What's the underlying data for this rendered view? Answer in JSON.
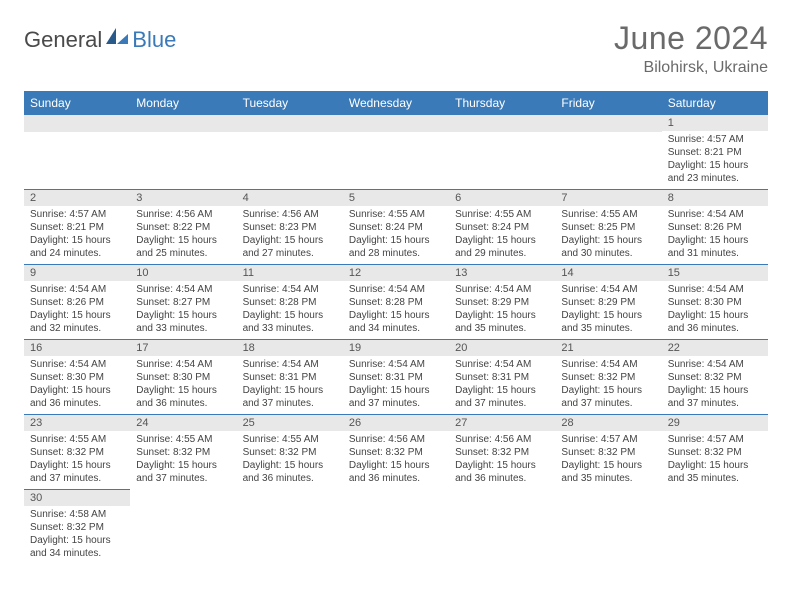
{
  "brand": {
    "part1": "General",
    "part2": "Blue"
  },
  "title": "June 2024",
  "location": "Bilohirsk, Ukraine",
  "colors": {
    "header_bg": "#3a7ab8",
    "header_text": "#ffffff",
    "daynum_bg": "#e8e8e8",
    "border": "#3a7ab8",
    "text": "#444444",
    "title_color": "#6a6a6a"
  },
  "day_headers": [
    "Sunday",
    "Monday",
    "Tuesday",
    "Wednesday",
    "Thursday",
    "Friday",
    "Saturday"
  ],
  "weeks": [
    [
      null,
      null,
      null,
      null,
      null,
      null,
      {
        "n": "1",
        "sr": "4:57 AM",
        "ss": "8:21 PM",
        "dl": "15 hours and 23 minutes."
      }
    ],
    [
      {
        "n": "2",
        "sr": "4:57 AM",
        "ss": "8:21 PM",
        "dl": "15 hours and 24 minutes."
      },
      {
        "n": "3",
        "sr": "4:56 AM",
        "ss": "8:22 PM",
        "dl": "15 hours and 25 minutes."
      },
      {
        "n": "4",
        "sr": "4:56 AM",
        "ss": "8:23 PM",
        "dl": "15 hours and 27 minutes."
      },
      {
        "n": "5",
        "sr": "4:55 AM",
        "ss": "8:24 PM",
        "dl": "15 hours and 28 minutes."
      },
      {
        "n": "6",
        "sr": "4:55 AM",
        "ss": "8:24 PM",
        "dl": "15 hours and 29 minutes."
      },
      {
        "n": "7",
        "sr": "4:55 AM",
        "ss": "8:25 PM",
        "dl": "15 hours and 30 minutes."
      },
      {
        "n": "8",
        "sr": "4:54 AM",
        "ss": "8:26 PM",
        "dl": "15 hours and 31 minutes."
      }
    ],
    [
      {
        "n": "9",
        "sr": "4:54 AM",
        "ss": "8:26 PM",
        "dl": "15 hours and 32 minutes."
      },
      {
        "n": "10",
        "sr": "4:54 AM",
        "ss": "8:27 PM",
        "dl": "15 hours and 33 minutes."
      },
      {
        "n": "11",
        "sr": "4:54 AM",
        "ss": "8:28 PM",
        "dl": "15 hours and 33 minutes."
      },
      {
        "n": "12",
        "sr": "4:54 AM",
        "ss": "8:28 PM",
        "dl": "15 hours and 34 minutes."
      },
      {
        "n": "13",
        "sr": "4:54 AM",
        "ss": "8:29 PM",
        "dl": "15 hours and 35 minutes."
      },
      {
        "n": "14",
        "sr": "4:54 AM",
        "ss": "8:29 PM",
        "dl": "15 hours and 35 minutes."
      },
      {
        "n": "15",
        "sr": "4:54 AM",
        "ss": "8:30 PM",
        "dl": "15 hours and 36 minutes."
      }
    ],
    [
      {
        "n": "16",
        "sr": "4:54 AM",
        "ss": "8:30 PM",
        "dl": "15 hours and 36 minutes."
      },
      {
        "n": "17",
        "sr": "4:54 AM",
        "ss": "8:30 PM",
        "dl": "15 hours and 36 minutes."
      },
      {
        "n": "18",
        "sr": "4:54 AM",
        "ss": "8:31 PM",
        "dl": "15 hours and 37 minutes."
      },
      {
        "n": "19",
        "sr": "4:54 AM",
        "ss": "8:31 PM",
        "dl": "15 hours and 37 minutes."
      },
      {
        "n": "20",
        "sr": "4:54 AM",
        "ss": "8:31 PM",
        "dl": "15 hours and 37 minutes."
      },
      {
        "n": "21",
        "sr": "4:54 AM",
        "ss": "8:32 PM",
        "dl": "15 hours and 37 minutes."
      },
      {
        "n": "22",
        "sr": "4:54 AM",
        "ss": "8:32 PM",
        "dl": "15 hours and 37 minutes."
      }
    ],
    [
      {
        "n": "23",
        "sr": "4:55 AM",
        "ss": "8:32 PM",
        "dl": "15 hours and 37 minutes."
      },
      {
        "n": "24",
        "sr": "4:55 AM",
        "ss": "8:32 PM",
        "dl": "15 hours and 37 minutes."
      },
      {
        "n": "25",
        "sr": "4:55 AM",
        "ss": "8:32 PM",
        "dl": "15 hours and 36 minutes."
      },
      {
        "n": "26",
        "sr": "4:56 AM",
        "ss": "8:32 PM",
        "dl": "15 hours and 36 minutes."
      },
      {
        "n": "27",
        "sr": "4:56 AM",
        "ss": "8:32 PM",
        "dl": "15 hours and 36 minutes."
      },
      {
        "n": "28",
        "sr": "4:57 AM",
        "ss": "8:32 PM",
        "dl": "15 hours and 35 minutes."
      },
      {
        "n": "29",
        "sr": "4:57 AM",
        "ss": "8:32 PM",
        "dl": "15 hours and 35 minutes."
      }
    ],
    [
      {
        "n": "30",
        "sr": "4:58 AM",
        "ss": "8:32 PM",
        "dl": "15 hours and 34 minutes."
      },
      null,
      null,
      null,
      null,
      null,
      null
    ]
  ],
  "labels": {
    "sunrise": "Sunrise:",
    "sunset": "Sunset:",
    "daylight": "Daylight:"
  }
}
